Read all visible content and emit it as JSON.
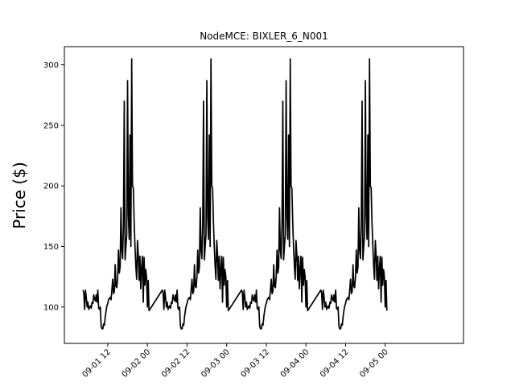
{
  "chart_data": {
    "type": "line",
    "title": "NodeMCE: BIXLER_6_N001",
    "xlabel": "",
    "ylabel": "Price ($)",
    "ylim": [
      70,
      315
    ],
    "xlim_hours": [
      -1.13,
      119.7
    ],
    "grid": false,
    "legend": "none",
    "line_color": "#000000",
    "x_ticks": [
      {
        "label": "09-01 12",
        "hour": 12
      },
      {
        "label": "09-02 00",
        "hour": 24
      },
      {
        "label": "09-02 12",
        "hour": 36
      },
      {
        "label": "09-03 00",
        "hour": 48
      },
      {
        "label": "09-03 12",
        "hour": 60
      },
      {
        "label": "09-04 00",
        "hour": 72
      },
      {
        "label": "09-04 12",
        "hour": 84
      },
      {
        "label": "09-05 00",
        "hour": 96
      }
    ],
    "y_ticks": [
      100,
      150,
      200,
      250,
      300
    ],
    "series": [
      {
        "name": "",
        "period_hours": 24,
        "repeats": 4,
        "start": "2022-09-01 04:30",
        "step_hours": 0.25,
        "values_one_period": [
          114,
          112,
          98,
          114,
          108,
          100,
          104,
          98,
          100,
          101,
          99,
          104,
          103,
          110,
          107,
          105,
          110,
          104,
          114,
          99,
          98,
          100,
          84,
          82,
          82,
          86,
          85,
          92,
          97,
          101,
          103,
          106,
          107,
          108,
          106,
          114,
          123,
          111,
          113,
          135,
          117,
          116,
          125,
          147,
          128,
          133,
          182,
          147,
          140,
          168,
          270,
          139,
          150,
          160,
          287,
          175,
          156,
          242,
          150,
          305,
          200,
          198,
          170,
          150,
          134,
          123,
          155,
          143,
          122,
          142,
          115,
          132,
          142,
          104,
          141,
          118,
          131,
          125,
          100,
          122,
          97
        ]
      }
    ]
  }
}
